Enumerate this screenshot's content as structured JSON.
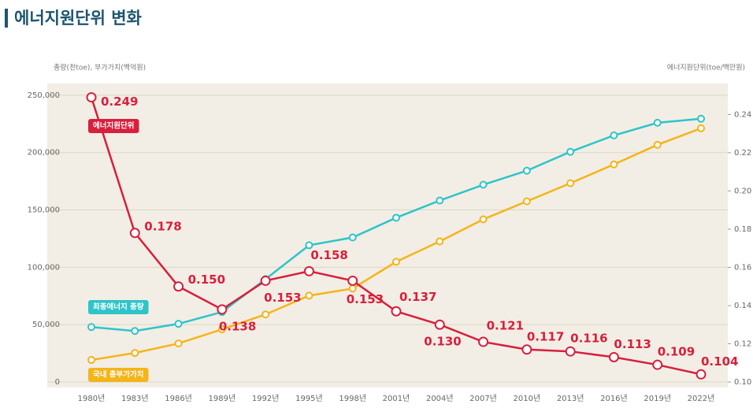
{
  "chart_data": {
    "type": "line",
    "title": "에너지원단위 변화",
    "ylabel": "총량(천toe), 부가가치(백억원)",
    "y2label": "에너지원단위(toe/백만원)",
    "categories": [
      "1980년",
      "1983년",
      "1986년",
      "1989년",
      "1992년",
      "1995년",
      "1998년",
      "2001년",
      "2004년",
      "2007년",
      "2010년",
      "2013년",
      "2016년",
      "2019년",
      "2022년"
    ],
    "ylim": [
      0,
      257500
    ],
    "yticks": [
      0,
      {
        "value": 50000,
        "label": "50,000"
      },
      {
        "value": 100000,
        "label": "100,000"
      },
      {
        "value": 150000,
        "label": "150,000"
      },
      {
        "value": 200000,
        "label": "200,000"
      },
      {
        "value": 250000,
        "label": "250,000"
      }
    ],
    "y2lim": [
      0.1,
      0.2546
    ],
    "y2ticks": [
      {
        "value": 0.1,
        "label": "0.10"
      },
      0.12,
      0.14,
      0.16,
      0.18,
      {
        "value": 0.2,
        "label": "0.20"
      },
      0.22,
      0.24
    ],
    "series": [
      {
        "name": "최종에너지 총량",
        "color": "#2ec4c9",
        "values": [
          47900,
          44500,
          50700,
          61000,
          89700,
          119200,
          126000,
          143200,
          158200,
          172000,
          184200,
          200700,
          215000,
          226000,
          229500
        ]
      },
      {
        "name": "국내 총부가가치",
        "color": "#f4b41a",
        "values": [
          19200,
          25300,
          33600,
          45900,
          58900,
          75300,
          81500,
          104800,
          122600,
          141800,
          157500,
          173300,
          189700,
          206800,
          221200
        ]
      },
      {
        "name": "에너지원단위",
        "color": "#d81f3c",
        "axis": "y2",
        "values": [
          0.249,
          0.178,
          0.15,
          0.138,
          0.153,
          0.158,
          0.153,
          0.137,
          0.13,
          0.121,
          0.117,
          0.116,
          0.113,
          0.109,
          0.104
        ],
        "value_labels": [
          "0.249",
          "0.178",
          "0.150",
          "0.138",
          "0.153",
          "0.158",
          "0.153",
          "0.137",
          "0.130",
          "0.121",
          "0.117",
          "0.116",
          "0.113",
          "0.109",
          "0.104"
        ]
      }
    ]
  }
}
